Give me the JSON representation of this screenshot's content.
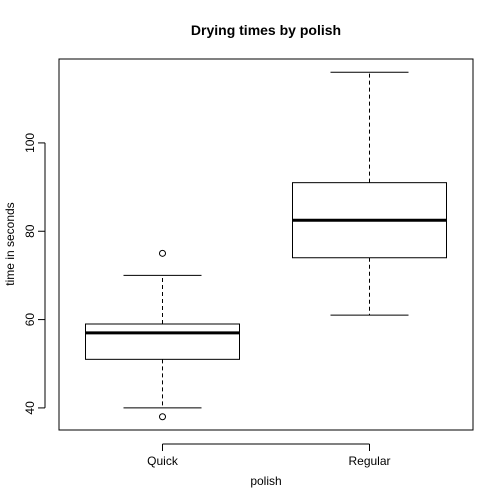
{
  "chart_data": {
    "type": "boxplot",
    "title": "Drying times by polish",
    "xlabel": "polish",
    "ylabel": "time in seconds",
    "ylim": [
      35,
      119
    ],
    "yticks": [
      40,
      60,
      80,
      100
    ],
    "grid": false,
    "legend": "none",
    "categories": [
      "Quick",
      "Regular"
    ],
    "boxes": [
      {
        "category": "Quick",
        "whisker_low": 40,
        "q1": 51,
        "median": 57,
        "q3": 59,
        "whisker_high": 70,
        "outliers": [
          38,
          75
        ]
      },
      {
        "category": "Regular",
        "whisker_low": 61,
        "q1": 74,
        "median": 82.5,
        "q3": 91,
        "whisker_high": 116,
        "outliers": []
      }
    ]
  }
}
